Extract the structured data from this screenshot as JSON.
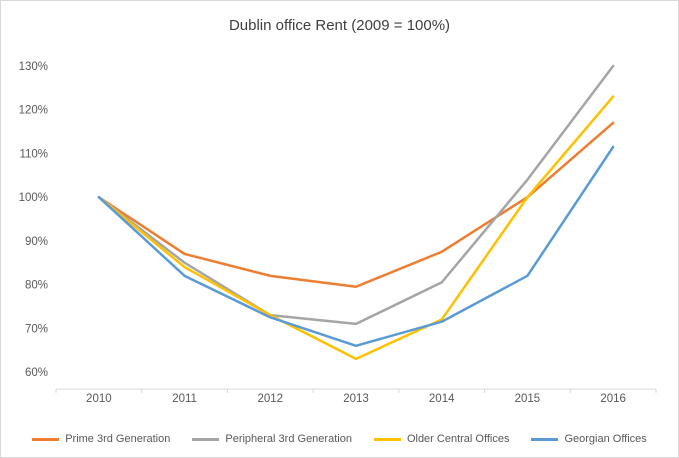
{
  "chart_data": {
    "type": "line",
    "title": "Dublin office Rent (2009 = 100%)",
    "categories": [
      "2010",
      "2011",
      "2012",
      "2013",
      "2014",
      "2015",
      "2016"
    ],
    "series": [
      {
        "name": "Prime 3rd Generation",
        "color": "#ED7D31",
        "values": [
          100,
          87,
          82,
          79.5,
          87.5,
          100,
          117
        ]
      },
      {
        "name": "Peripheral 3rd Generation",
        "color": "#A5A5A5",
        "values": [
          100,
          85,
          73,
          71,
          80.5,
          104,
          130
        ]
      },
      {
        "name": "Older Central Offices",
        "color": "#FFC000",
        "values": [
          100,
          84,
          73,
          63,
          72,
          100,
          123
        ]
      },
      {
        "name": "Georgian Offices",
        "color": "#5B9BD5",
        "values": [
          100,
          82,
          72.5,
          66,
          71.5,
          82,
          111.5
        ]
      }
    ],
    "y_ticks": [
      "60%",
      "70%",
      "80%",
      "90%",
      "100%",
      "110%",
      "120%",
      "130%"
    ],
    "y_tick_values": [
      60,
      70,
      80,
      90,
      100,
      110,
      120,
      130
    ],
    "ylim": [
      60,
      130
    ],
    "xlabel": "",
    "ylabel": "",
    "grid": false,
    "legend_position": "bottom"
  }
}
